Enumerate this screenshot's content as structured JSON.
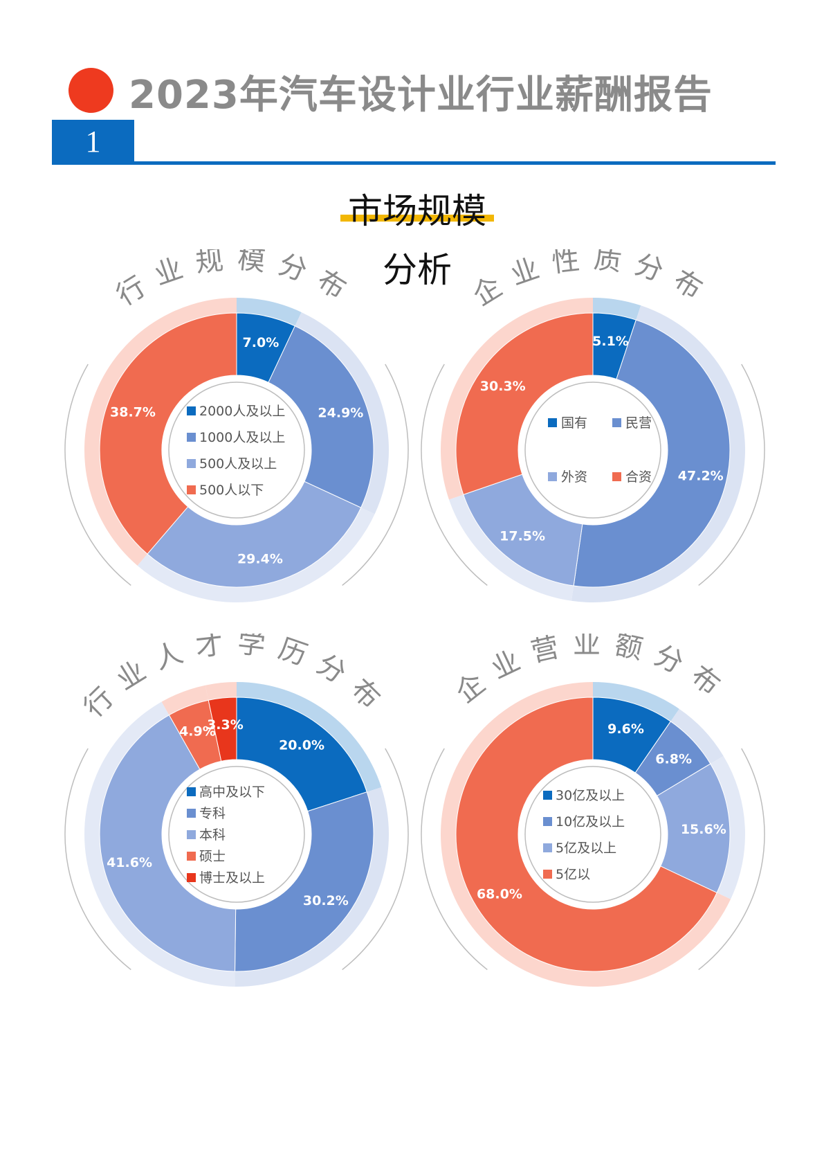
{
  "header": {
    "title": "2023年汽车设计业行业薪酬报告",
    "section_number": "1",
    "subtitle_line1": "市场规模",
    "subtitle_line2": "分析"
  },
  "colors": {
    "accent_red": "#ee3a1f",
    "brand_blue": "#0b6bbf",
    "underline_yellow": "#f2b705",
    "title_gray": "#8a8a8a"
  },
  "chart_data": [
    {
      "type": "pie",
      "donut": true,
      "title": "行业规模分布",
      "legend_position": "center",
      "legend_layout": "list",
      "categories": [
        "2000人及以上",
        "1000人及以上",
        "500人及以上",
        "500人以下"
      ],
      "values": [
        7.0,
        24.9,
        29.4,
        38.7
      ],
      "labels": [
        "7.0%",
        "24.9%",
        "29.4%",
        "38.7%"
      ],
      "colors": [
        "#0b6bbf",
        "#6a8fd0",
        "#8fa9dd",
        "#f06b50"
      ],
      "light_colors": [
        "#b9d6ee",
        "#dbe3f3",
        "#e3e9f6",
        "#fcd6cd"
      ]
    },
    {
      "type": "pie",
      "donut": true,
      "title": "企业性质分布",
      "legend_position": "center",
      "legend_layout": "grid",
      "categories": [
        "国有",
        "民营",
        "外资",
        "合资"
      ],
      "values": [
        5.1,
        47.2,
        17.5,
        30.3
      ],
      "labels": [
        "5.1%",
        "47.2%",
        "17.5%",
        "30.3%"
      ],
      "colors": [
        "#0b6bbf",
        "#6a8fd0",
        "#8fa9dd",
        "#f06b50"
      ],
      "light_colors": [
        "#b9d6ee",
        "#dbe3f3",
        "#e3e9f6",
        "#fcd6cd"
      ]
    },
    {
      "type": "pie",
      "donut": true,
      "title": "行业人才学历分布",
      "legend_position": "center",
      "legend_layout": "list",
      "categories": [
        "高中及以下",
        "专科",
        "本科",
        "硕士",
        "博士及以上"
      ],
      "values": [
        20.0,
        30.2,
        41.6,
        4.9,
        3.3
      ],
      "labels": [
        "20.0%",
        "30.2%",
        "41.6%",
        "4.9%",
        "3.3%"
      ],
      "colors": [
        "#0b6bbf",
        "#6a8fd0",
        "#8fa9dd",
        "#f06b50",
        "#e8361c"
      ],
      "light_colors": [
        "#b9d6ee",
        "#dbe3f3",
        "#e3e9f6",
        "#fcd6cd",
        "#fcd6cd"
      ]
    },
    {
      "type": "pie",
      "donut": true,
      "title": "企业营业额分布",
      "legend_position": "center",
      "legend_layout": "list",
      "categories": [
        "30亿及以上",
        "10亿及以上",
        "5亿及以上",
        "5亿以"
      ],
      "values": [
        9.6,
        6.8,
        15.6,
        68.0
      ],
      "labels": [
        "9.6%",
        "6.8%",
        "15.6%",
        "68.0%"
      ],
      "colors": [
        "#0b6bbf",
        "#6a8fd0",
        "#8fa9dd",
        "#f06b50"
      ],
      "light_colors": [
        "#b9d6ee",
        "#dbe3f3",
        "#e3e9f6",
        "#fcd6cd"
      ]
    }
  ]
}
